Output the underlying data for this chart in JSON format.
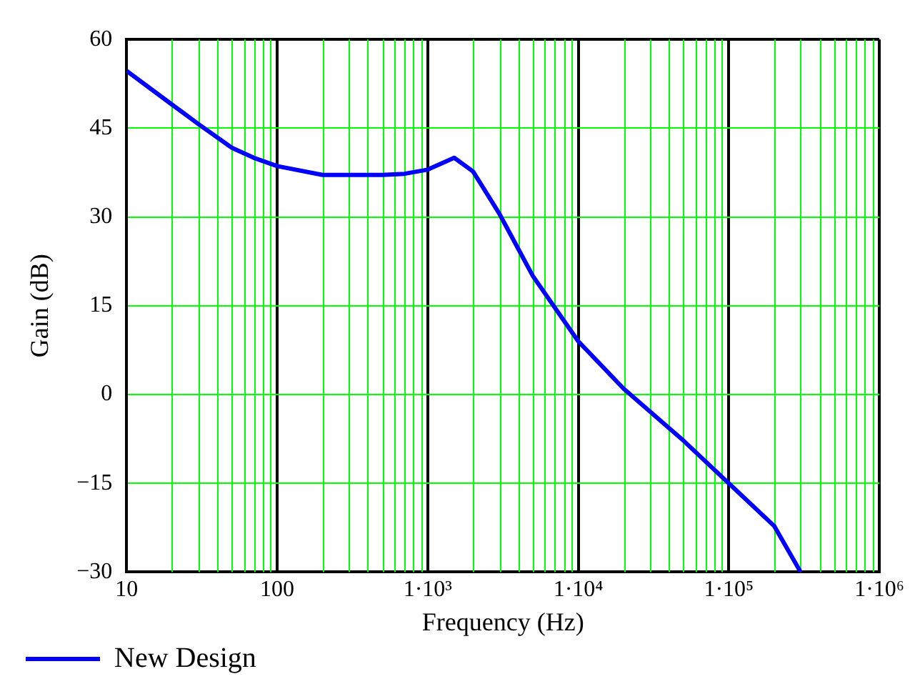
{
  "chart_data": {
    "type": "line",
    "xlabel": "Frequency (Hz)",
    "ylabel": "Gain (dB)",
    "log": "x",
    "xlim": [
      10,
      1000000
    ],
    "xticks": [
      10,
      100,
      {
        "value": 1000,
        "label": "1·10³"
      },
      {
        "value": 10000,
        "label": "1·10⁴"
      },
      {
        "value": 100000,
        "label": "1·10⁵"
      },
      {
        "value": 1000000,
        "label": "1·10⁶"
      }
    ],
    "ylim": [
      -30,
      60
    ],
    "yticks": [
      -30,
      -15,
      0,
      15,
      30,
      45,
      60
    ],
    "grid": true,
    "legend": "bottom left",
    "series": [
      {
        "name": "New Design",
        "color": "#0000ff",
        "x": [
          10,
          20,
          30,
          50,
          70,
          100,
          200,
          500,
          700,
          1000,
          1500,
          2000,
          3000,
          5000,
          10000,
          20000,
          50000,
          100000,
          200000,
          300000
        ],
        "values": [
          54.7,
          49,
          45.7,
          41.7,
          40,
          38.6,
          37.1,
          37.1,
          37.3,
          38,
          40,
          37.7,
          30.5,
          20,
          9,
          1,
          -7.8,
          -15,
          -22.2,
          -30
        ]
      }
    ]
  }
}
